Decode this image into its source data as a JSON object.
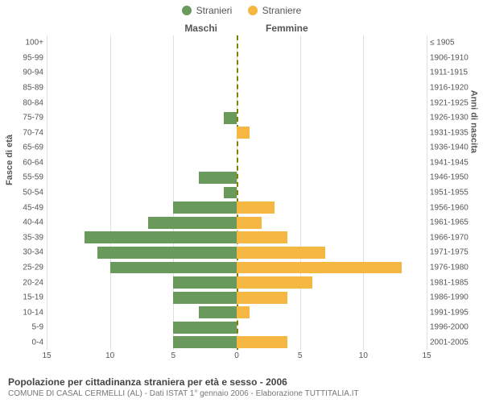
{
  "chart_type": "population-pyramid",
  "legend": {
    "male": {
      "label": "Stranieri",
      "color": "#6a9a5b"
    },
    "female": {
      "label": "Straniere",
      "color": "#f5b642"
    }
  },
  "columns": {
    "male_title": "Maschi",
    "female_title": "Femmine"
  },
  "y_axis": {
    "left_title": "Fasce di età",
    "right_title": "Anni di nascita"
  },
  "x_axis": {
    "max": 15,
    "ticks": [
      15,
      10,
      5,
      0,
      5,
      10,
      15
    ],
    "grid_color": "#e0e0e0",
    "center_line_color": "#808000"
  },
  "style": {
    "bar_height_ratio": 0.8,
    "font_family": "Arial",
    "tick_fontsize": 10,
    "axis_title_fontsize": 11,
    "legend_fontsize": 12,
    "caption_title_fontsize": 12,
    "caption_sub_fontsize": 10,
    "background": "#ffffff"
  },
  "rows": [
    {
      "age": "100+",
      "birth": "≤ 1905",
      "male": 0,
      "female": 0
    },
    {
      "age": "95-99",
      "birth": "1906-1910",
      "male": 0,
      "female": 0
    },
    {
      "age": "90-94",
      "birth": "1911-1915",
      "male": 0,
      "female": 0
    },
    {
      "age": "85-89",
      "birth": "1916-1920",
      "male": 0,
      "female": 0
    },
    {
      "age": "80-84",
      "birth": "1921-1925",
      "male": 0,
      "female": 0
    },
    {
      "age": "75-79",
      "birth": "1926-1930",
      "male": 1,
      "female": 0
    },
    {
      "age": "70-74",
      "birth": "1931-1935",
      "male": 0,
      "female": 1
    },
    {
      "age": "65-69",
      "birth": "1936-1940",
      "male": 0,
      "female": 0
    },
    {
      "age": "60-64",
      "birth": "1941-1945",
      "male": 0,
      "female": 0
    },
    {
      "age": "55-59",
      "birth": "1946-1950",
      "male": 3,
      "female": 0
    },
    {
      "age": "50-54",
      "birth": "1951-1955",
      "male": 1,
      "female": 0
    },
    {
      "age": "45-49",
      "birth": "1956-1960",
      "male": 5,
      "female": 3
    },
    {
      "age": "40-44",
      "birth": "1961-1965",
      "male": 7,
      "female": 2
    },
    {
      "age": "35-39",
      "birth": "1966-1970",
      "male": 12,
      "female": 4
    },
    {
      "age": "30-34",
      "birth": "1971-1975",
      "male": 11,
      "female": 7
    },
    {
      "age": "25-29",
      "birth": "1976-1980",
      "male": 10,
      "female": 13
    },
    {
      "age": "20-24",
      "birth": "1981-1985",
      "male": 5,
      "female": 6
    },
    {
      "age": "15-19",
      "birth": "1986-1990",
      "male": 5,
      "female": 4
    },
    {
      "age": "10-14",
      "birth": "1991-1995",
      "male": 3,
      "female": 1
    },
    {
      "age": "5-9",
      "birth": "1996-2000",
      "male": 5,
      "female": 0
    },
    {
      "age": "0-4",
      "birth": "2001-2005",
      "male": 5,
      "female": 4
    }
  ],
  "caption": {
    "title": "Popolazione per cittadinanza straniera per età e sesso - 2006",
    "subtitle": "COMUNE DI CASAL CERMELLI (AL) - Dati ISTAT 1° gennaio 2006 - Elaborazione TUTTITALIA.IT"
  }
}
